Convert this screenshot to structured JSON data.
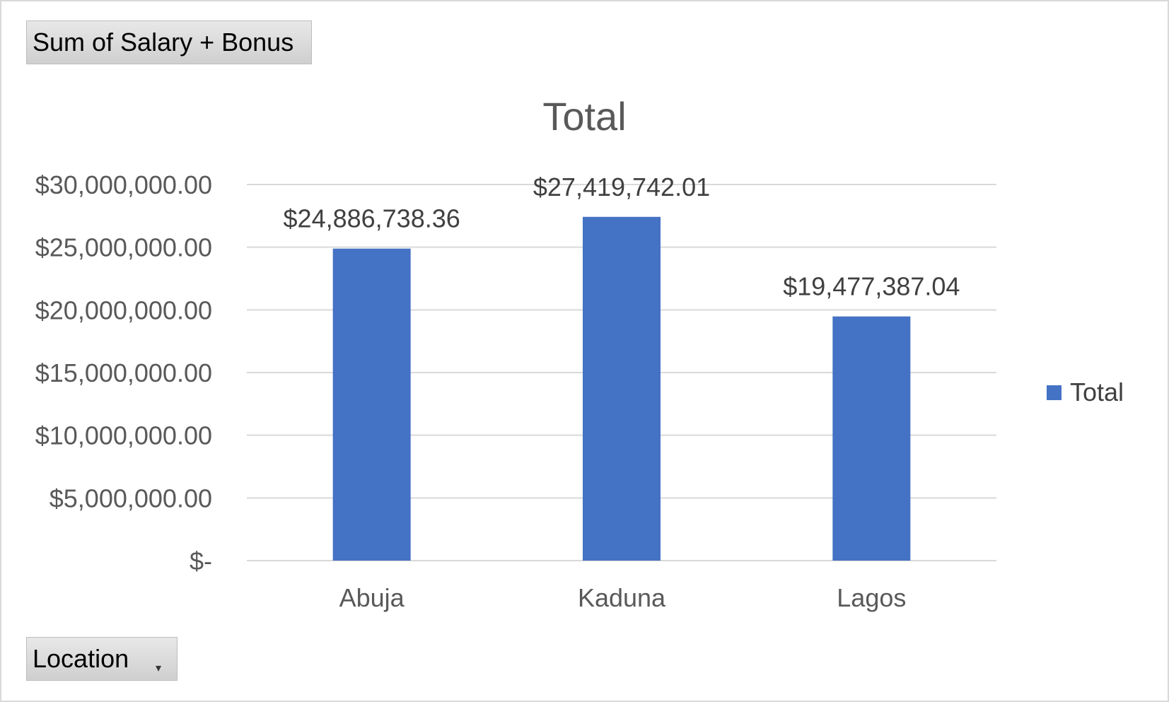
{
  "field_buttons": {
    "values_field": "Sum of Salary + Bonus",
    "axis_field": "Location"
  },
  "colors": {
    "bar": "#4472c4",
    "grid": "#d9d9d9",
    "text": "#595959"
  },
  "chart_data": {
    "type": "bar",
    "title": "Total",
    "categories": [
      "Abuja",
      "Kaduna",
      "Lagos"
    ],
    "series": [
      {
        "name": "Total",
        "values": [
          24886738.36,
          27419742.01,
          19477387.04
        ]
      }
    ],
    "data_labels": [
      "$24,886,738.36",
      "$27,419,742.01",
      "$19,477,387.04"
    ],
    "ylim": [
      0,
      30000000
    ],
    "yticks": [
      0,
      5000000,
      10000000,
      15000000,
      20000000,
      25000000,
      30000000
    ],
    "ytick_labels": [
      "$-",
      "$5,000,000.00",
      "$10,000,000.00",
      "$15,000,000.00",
      "$20,000,000.00",
      "$25,000,000.00",
      "$30,000,000.00"
    ],
    "grid": true,
    "legend": "right"
  }
}
